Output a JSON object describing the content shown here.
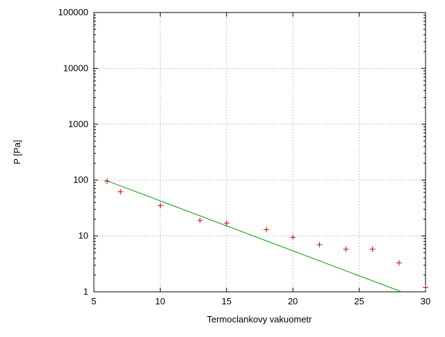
{
  "chart_data": {
    "type": "scatter",
    "title": "",
    "xlabel": "Termoclankovy vakuometr",
    "ylabel": "P [Pa]",
    "x_ticks": [
      5,
      10,
      15,
      20,
      25,
      30
    ],
    "y_ticks": [
      1,
      10,
      100,
      1000,
      10000,
      100000
    ],
    "xlim": [
      5,
      30
    ],
    "ylim": [
      1,
      100000
    ],
    "y_scale": "log",
    "grid": true,
    "legend": "none",
    "colors": {
      "points": "#cc0000",
      "fit_line": "#00a000",
      "grid": "#9a9a9a",
      "axis": "#000000"
    },
    "series": [
      {
        "name": "measured-points",
        "type": "points",
        "marker": "plus",
        "color": "#cc0000",
        "x": [
          6,
          7,
          10,
          13,
          15,
          18,
          20,
          22,
          24,
          26,
          28,
          30
        ],
        "y": [
          95,
          62,
          35,
          19,
          17,
          13,
          9.5,
          7,
          5.8,
          5.8,
          3.3,
          1.2
        ]
      },
      {
        "name": "exponential-fit",
        "type": "line",
        "color": "#00a000",
        "x": [
          5.85,
          28.2
        ],
        "y": [
          100,
          1
        ]
      }
    ]
  }
}
